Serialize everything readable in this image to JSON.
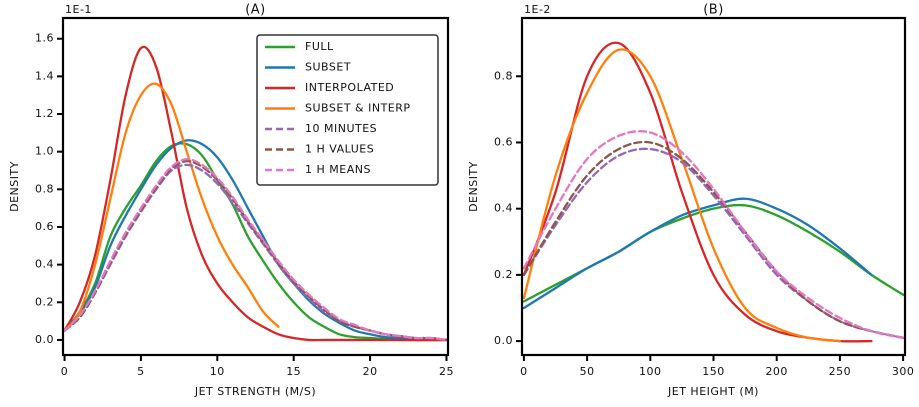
{
  "chart_data": [
    {
      "type": "line",
      "title": "(A)",
      "offset_label": "1E-1",
      "x_label": "JET STRENGTH (M/S)",
      "y_label": "DENSITY",
      "x": [
        0,
        1,
        2,
        3,
        4,
        5,
        6,
        7,
        8,
        9,
        10,
        11,
        12,
        13,
        14,
        15,
        16,
        17,
        18,
        19,
        20,
        21,
        22,
        23,
        24,
        25
      ],
      "xlim": [
        -0.1,
        25.1
      ],
      "xticks": [
        0,
        5,
        10,
        15,
        20,
        25
      ],
      "ylim": [
        -0.08,
        1.71
      ],
      "yticks": [
        {
          "value": 0.0,
          "label": "0.0"
        },
        0.2,
        0.4,
        0.6,
        0.8,
        {
          "value": 1.0,
          "label": "1.0"
        },
        1.2,
        1.4,
        1.6
      ],
      "legend": "upper right",
      "series": [
        {
          "name": "FULL",
          "color": "#2ca02c",
          "dashed": false,
          "values": [
            0.05,
            0.15,
            0.3,
            0.55,
            0.7,
            0.82,
            0.95,
            1.03,
            1.04,
            0.98,
            0.85,
            0.72,
            0.55,
            0.42,
            0.3,
            0.2,
            0.12,
            0.07,
            0.03,
            0.015,
            0.01,
            0.005,
            0.0,
            0.0,
            0.0,
            0.0
          ]
        },
        {
          "name": "SUBSET",
          "color": "#1f77b4",
          "dashed": false,
          "values": [
            0.05,
            0.14,
            0.28,
            0.5,
            0.66,
            0.8,
            0.93,
            1.02,
            1.06,
            1.04,
            0.97,
            0.85,
            0.7,
            0.55,
            0.4,
            0.3,
            0.21,
            0.14,
            0.09,
            0.05,
            0.03,
            0.015,
            0.01,
            0.0,
            0.0,
            0.0
          ]
        },
        {
          "name": "INTERPOLATED",
          "color": "#d62728",
          "dashed": false,
          "values": [
            0.05,
            0.2,
            0.45,
            0.85,
            1.3,
            1.55,
            1.45,
            1.1,
            0.7,
            0.45,
            0.3,
            0.2,
            0.12,
            0.07,
            0.03,
            0.01,
            0.0,
            0.0,
            0.0,
            0.0,
            0.0,
            0.0,
            0.0,
            0.0,
            0.0,
            0.0
          ]
        },
        {
          "name": "SUBSET & INTERP",
          "color": "#ff7f0e",
          "dashed": false,
          "values": [
            0.05,
            0.15,
            0.4,
            0.75,
            1.1,
            1.3,
            1.36,
            1.25,
            1.0,
            0.75,
            0.55,
            0.4,
            0.28,
            0.15,
            0.07,
            null,
            null,
            null,
            null,
            null,
            null,
            null,
            null,
            null,
            null,
            null
          ]
        },
        {
          "name": "10 MINUTES",
          "color": "#9467bd",
          "dashed": true,
          "values": [
            0.05,
            0.12,
            0.25,
            0.4,
            0.55,
            0.68,
            0.8,
            0.9,
            0.93,
            0.9,
            0.83,
            0.73,
            0.62,
            0.51,
            0.4,
            0.3,
            0.22,
            0.15,
            0.1,
            0.07,
            0.05,
            0.03,
            0.02,
            0.01,
            0.01,
            0.0
          ]
        },
        {
          "name": "1 H VALUES",
          "color": "#8c564b",
          "dashed": true,
          "values": [
            0.05,
            0.12,
            0.25,
            0.41,
            0.56,
            0.69,
            0.81,
            0.91,
            0.95,
            0.92,
            0.85,
            0.75,
            0.63,
            0.52,
            0.41,
            0.31,
            0.23,
            0.16,
            0.1,
            0.07,
            0.05,
            0.03,
            0.02,
            0.01,
            0.01,
            0.0
          ]
        },
        {
          "name": "1 H MEANS",
          "color": "#e377c2",
          "dashed": true,
          "values": [
            0.05,
            0.13,
            0.26,
            0.42,
            0.57,
            0.7,
            0.82,
            0.92,
            0.96,
            0.93,
            0.86,
            0.76,
            0.64,
            0.53,
            0.42,
            0.32,
            0.24,
            0.17,
            0.11,
            0.08,
            0.05,
            0.03,
            0.02,
            0.01,
            0.01,
            0.0
          ]
        }
      ]
    },
    {
      "type": "line",
      "title": "(B)",
      "offset_label": "1E-2",
      "x_label": "JET HEIGHT (M)",
      "y_label": "DENSITY",
      "x": [
        0,
        25,
        50,
        75,
        100,
        125,
        150,
        175,
        200,
        225,
        250,
        275,
        300
      ],
      "xlim": [
        -1.5,
        301.5
      ],
      "xticks": [
        0,
        50,
        100,
        150,
        200,
        250,
        300
      ],
      "ylim": [
        -0.042,
        0.976
      ],
      "yticks": [
        {
          "value": 0.0,
          "label": "0.0"
        },
        0.2,
        0.4,
        0.6,
        0.8
      ],
      "series": [
        {
          "name": "FULL",
          "color": "#2ca02c",
          "dashed": false,
          "values": [
            0.12,
            0.17,
            0.22,
            0.27,
            0.33,
            0.37,
            0.4,
            0.41,
            0.38,
            0.33,
            0.27,
            0.2,
            0.14
          ]
        },
        {
          "name": "SUBSET",
          "color": "#1f77b4",
          "dashed": false,
          "values": [
            0.1,
            0.16,
            0.22,
            0.27,
            0.33,
            0.38,
            0.41,
            0.43,
            0.4,
            0.35,
            0.28,
            0.2,
            null
          ]
        },
        {
          "name": "INTERPOLATED",
          "color": "#d62728",
          "dashed": false,
          "values": [
            0.2,
            0.45,
            0.8,
            0.9,
            0.75,
            0.45,
            0.2,
            0.08,
            0.03,
            0.01,
            0.0,
            0.0,
            null
          ]
        },
        {
          "name": "SUBSET & INTERP",
          "color": "#ff7f0e",
          "dashed": false,
          "values": [
            0.13,
            0.5,
            0.75,
            0.88,
            0.8,
            0.55,
            0.28,
            0.1,
            0.04,
            0.01,
            0.0,
            null,
            null
          ]
        },
        {
          "name": "10 MINUTES",
          "color": "#9467bd",
          "dashed": true,
          "values": [
            0.2,
            0.35,
            0.48,
            0.56,
            0.58,
            0.54,
            0.44,
            0.32,
            0.2,
            0.12,
            0.06,
            0.03,
            0.01
          ]
        },
        {
          "name": "1 H VALUES",
          "color": "#8c564b",
          "dashed": true,
          "values": [
            0.2,
            0.36,
            0.5,
            0.58,
            0.6,
            0.55,
            0.45,
            0.33,
            0.21,
            0.12,
            0.06,
            0.03,
            0.01
          ]
        },
        {
          "name": "1 H MEANS",
          "color": "#e377c2",
          "dashed": true,
          "values": [
            0.22,
            0.4,
            0.55,
            0.62,
            0.63,
            0.57,
            0.46,
            0.33,
            0.21,
            0.13,
            0.07,
            0.03,
            0.01
          ]
        }
      ]
    }
  ]
}
